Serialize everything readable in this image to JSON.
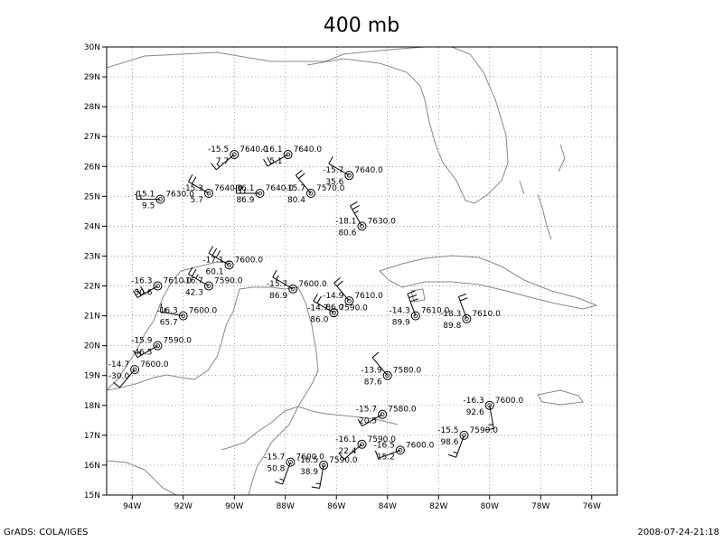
{
  "title": "400 mb",
  "footer": {
    "left": "GrADS: COLA/IGES",
    "right": "2008-07-24-21:18"
  },
  "map": {
    "lon_range": [
      -95,
      -75
    ],
    "lat_range": [
      15,
      30
    ],
    "lon_ticks": [
      {
        "value": -94,
        "label": "94W"
      },
      {
        "value": -92,
        "label": "92W"
      },
      {
        "value": -90,
        "label": "90W"
      },
      {
        "value": -88,
        "label": "88W"
      },
      {
        "value": -86,
        "label": "86W"
      },
      {
        "value": -84,
        "label": "84W"
      },
      {
        "value": -82,
        "label": "82W"
      },
      {
        "value": -80,
        "label": "80W"
      },
      {
        "value": -78,
        "label": "78W"
      },
      {
        "value": -76,
        "label": "76W"
      }
    ],
    "lat_ticks": [
      {
        "value": 15,
        "label": "15N"
      },
      {
        "value": 16,
        "label": "16N"
      },
      {
        "value": 17,
        "label": "17N"
      },
      {
        "value": 18,
        "label": "18N"
      },
      {
        "value": 19,
        "label": "19N"
      },
      {
        "value": 20,
        "label": "20N"
      },
      {
        "value": 21,
        "label": "21N"
      },
      {
        "value": 22,
        "label": "22N"
      },
      {
        "value": 23,
        "label": "23N"
      },
      {
        "value": 24,
        "label": "24N"
      },
      {
        "value": 25,
        "label": "25N"
      },
      {
        "value": 26,
        "label": "26N"
      },
      {
        "value": 27,
        "label": "27N"
      },
      {
        "value": 28,
        "label": "28N"
      },
      {
        "value": 29,
        "label": "29N"
      },
      {
        "value": 30,
        "label": "30N"
      }
    ],
    "grid": true,
    "coast_color": "#888888"
  },
  "chart_data": {
    "type": "scatter",
    "title": "400 mb",
    "xlabel": "",
    "ylabel": "",
    "xlim": [
      -95,
      -75
    ],
    "ylim": [
      15,
      30
    ],
    "stations": [
      {
        "lon": -90.0,
        "lat": 26.4,
        "temp": "-15.5",
        "dew": "7.7",
        "hgt": "7640.0",
        "wdir": 230,
        "wspd": 15
      },
      {
        "lon": -87.9,
        "lat": 26.4,
        "temp": "-16.1",
        "dew": "5.1",
        "hgt": "7640.0",
        "wdir": 240,
        "wspd": 20
      },
      {
        "lon": -85.5,
        "lat": 25.7,
        "temp": "-15.7",
        "dew": "35.6",
        "hgt": "7640.0",
        "wdir": 300,
        "wspd": 10
      },
      {
        "lon": -92.9,
        "lat": 24.9,
        "temp": "-15.1",
        "dew": "9.5",
        "hgt": "7630.0",
        "wdir": 270,
        "wspd": 15
      },
      {
        "lon": -91.0,
        "lat": 25.1,
        "temp": "-15.3",
        "dew": "5.7",
        "hgt": "7640.0",
        "wdir": 300,
        "wspd": 20
      },
      {
        "lon": -89.0,
        "lat": 25.1,
        "temp": "-16.1",
        "dew": "86.9",
        "hgt": "7640.0",
        "wdir": 270,
        "wspd": 25
      },
      {
        "lon": -87.0,
        "lat": 25.1,
        "temp": "-15.7",
        "dew": "80.4",
        "hgt": "7570.0",
        "wdir": 320,
        "wspd": 20
      },
      {
        "lon": -85.0,
        "lat": 24.0,
        "temp": "-18.1",
        "dew": "80.6",
        "hgt": "7630.0",
        "wdir": 330,
        "wspd": 25
      },
      {
        "lon": -90.2,
        "lat": 22.7,
        "temp": "-17.1",
        "dew": "60.1",
        "hgt": "7600.0",
        "wdir": 300,
        "wspd": 30
      },
      {
        "lon": -93.0,
        "lat": 22.0,
        "temp": "-16.3",
        "dew": "50.6",
        "hgt": "7610.0",
        "wdir": 240,
        "wspd": 30
      },
      {
        "lon": -91.0,
        "lat": 22.0,
        "temp": "-16.7",
        "dew": "42.3",
        "hgt": "7590.0",
        "wdir": 300,
        "wspd": 25
      },
      {
        "lon": -87.7,
        "lat": 21.9,
        "temp": "-15.7",
        "dew": "86.9",
        "hgt": "7600.0",
        "wdir": 300,
        "wspd": 15
      },
      {
        "lon": -85.5,
        "lat": 21.5,
        "temp": "-14.9",
        "dew": "86.0",
        "hgt": "7610.0",
        "wdir": 320,
        "wspd": 20
      },
      {
        "lon": -86.1,
        "lat": 21.1,
        "temp": "-14.7",
        "dew": "86.0",
        "hgt": "7590.0",
        "wdir": 300,
        "wspd": 20
      },
      {
        "lon": -92.0,
        "lat": 21.0,
        "temp": "-16.3",
        "dew": "65.7",
        "hgt": "7600.0",
        "wdir": 280,
        "wspd": 15
      },
      {
        "lon": -82.9,
        "lat": 21.0,
        "temp": "-14.3",
        "dew": "89.9",
        "hgt": "7610.0",
        "wdir": 340,
        "wspd": 30
      },
      {
        "lon": -80.9,
        "lat": 20.9,
        "temp": "-18.3",
        "dew": "89.8",
        "hgt": "7610.0",
        "wdir": 340,
        "wspd": 20
      },
      {
        "lon": -93.0,
        "lat": 20.0,
        "temp": "-15.9",
        "dew": "46.5",
        "hgt": "7590.0",
        "wdir": 240,
        "wspd": 15
      },
      {
        "lon": -93.9,
        "lat": 19.2,
        "temp": "-14.7",
        "dew": "-30.0",
        "hgt": "7600.0",
        "wdir": 220,
        "wspd": 10
      },
      {
        "lon": -84.0,
        "lat": 19.0,
        "temp": "-13.9",
        "dew": "87.6",
        "hgt": "7580.0",
        "wdir": 320,
        "wspd": 10
      },
      {
        "lon": -84.2,
        "lat": 17.7,
        "temp": "-15.7",
        "dew": "20.5",
        "hgt": "7580.0",
        "wdir": 240,
        "wspd": 10
      },
      {
        "lon": -80.0,
        "lat": 18.0,
        "temp": "-16.3",
        "dew": "92.6",
        "hgt": "7600.0",
        "wdir": 170,
        "wspd": 15
      },
      {
        "lon": -85.0,
        "lat": 16.7,
        "temp": "-16.1",
        "dew": "22.4",
        "hgt": "7590.0",
        "wdir": 230,
        "wspd": 10
      },
      {
        "lon": -83.5,
        "lat": 16.5,
        "temp": "-16.5",
        "dew": "15.2",
        "hgt": "7600.0",
        "wdir": 250,
        "wspd": 10
      },
      {
        "lon": -81.0,
        "lat": 17.0,
        "temp": "-15.5",
        "dew": "98.6",
        "hgt": "7590.0",
        "wdir": 200,
        "wspd": 15
      },
      {
        "lon": -87.8,
        "lat": 16.1,
        "temp": "-15.7",
        "dew": "50.8",
        "hgt": "7600.0",
        "wdir": 200,
        "wspd": 15
      },
      {
        "lon": -86.5,
        "lat": 16.0,
        "temp": "-16.5",
        "dew": "38.9",
        "hgt": "7590.0",
        "wdir": 190,
        "wspd": 15
      }
    ]
  }
}
